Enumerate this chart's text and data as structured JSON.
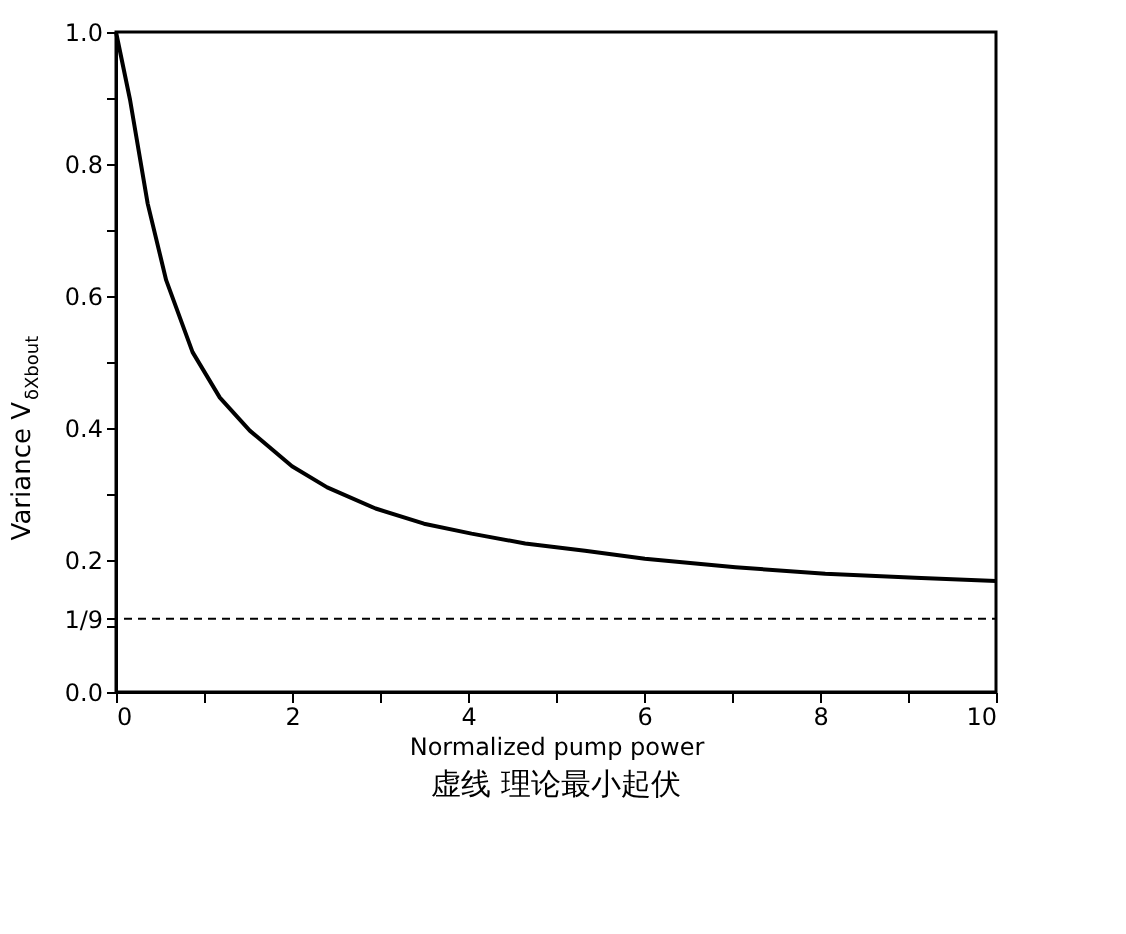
{
  "chart_data": {
    "type": "line",
    "xlabel": "Normalized pump power",
    "ylabel": "Variance V$_{δXbout}$",
    "annotations": [
      "虚线 理论最小起伏"
    ],
    "x": [
      0,
      0.16,
      0.36,
      0.57,
      0.87,
      1.18,
      1.52,
      2.0,
      2.4,
      2.95,
      3.5,
      4.04,
      4.65,
      5.33,
      6.01,
      7.04,
      8.06,
      9.08,
      10
    ],
    "series": [
      {
        "color": "#000000",
        "values": [
          1.0,
          0.897,
          0.74,
          0.624,
          0.515,
          0.446,
          0.396,
          0.342,
          0.31,
          0.278,
          0.255,
          0.24,
          0.225,
          0.214,
          0.202,
          0.189,
          0.179,
          0.173,
          0.168
        ]
      }
    ],
    "xlim": [
      0,
      10
    ],
    "ylim": [
      0,
      1
    ],
    "xticks": [
      0,
      {
        "value": 1,
        "label": null
      },
      2,
      {
        "value": 3,
        "label": null
      },
      4,
      {
        "value": 5,
        "label": null
      },
      6,
      {
        "value": 7,
        "label": null
      },
      8,
      {
        "value": 9,
        "label": null
      },
      10
    ],
    "yticks": [
      {
        "value": 0,
        "label": "0.0"
      },
      {
        "value": 0.1,
        "label": null
      },
      {
        "value": 0.111,
        "label": "1/9"
      },
      0.2,
      {
        "value": 0.3,
        "label": null
      },
      0.4,
      {
        "value": 0.5,
        "label": null
      },
      0.6,
      {
        "value": 0.7,
        "label": null
      },
      0.8,
      {
        "value": 0.9,
        "label": null
      },
      {
        "value": 1,
        "label": "1.0"
      }
    ],
    "ref_lines": [
      {
        "axis": "y",
        "value": 0.111,
        "color": "#000000",
        "line_style": "dashed"
      }
    ],
    "grid": false,
    "marker": "none",
    "line_style": "solid"
  }
}
